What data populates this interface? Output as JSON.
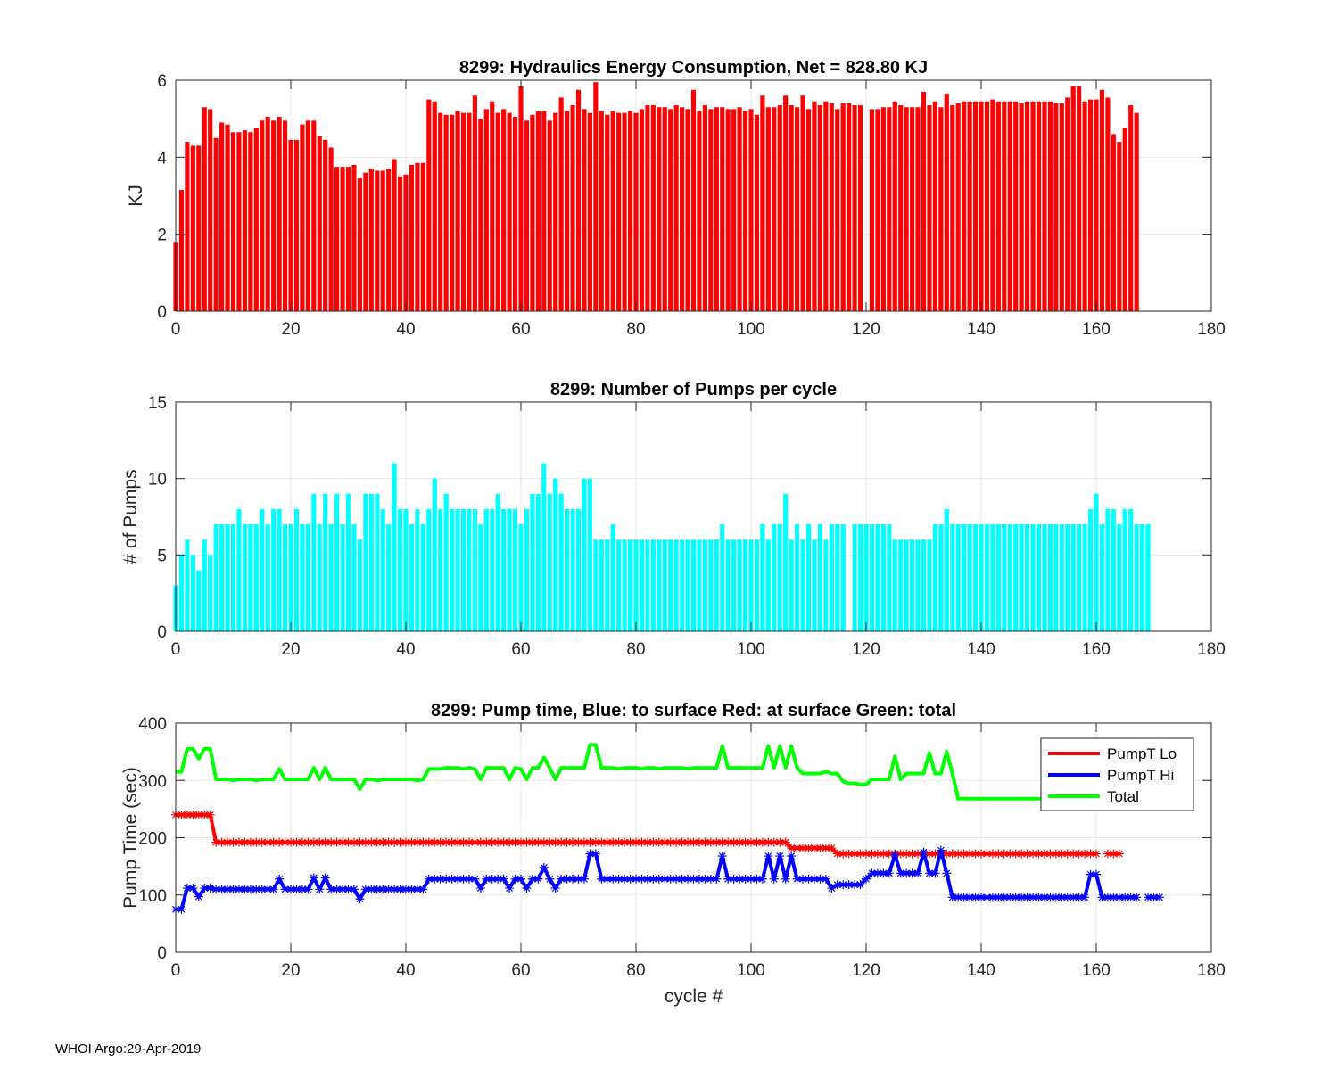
{
  "footer": "WHOI Argo:29-Apr-2019",
  "colors": {
    "energy": "#ff0000",
    "pumps": "#00ffff",
    "lo": "#ff0000",
    "hi": "#0000ff",
    "total": "#00ff00",
    "grid": "#e6e6e6",
    "axis": "#262626"
  },
  "chart_data": [
    {
      "id": "energy",
      "type": "bar",
      "title": "8299: Hydraulics Energy Consumption,  Net = 828.80 KJ",
      "xlabel": "",
      "ylabel": "KJ",
      "xlim": [
        0,
        180
      ],
      "ylim": [
        0,
        6
      ],
      "xticks": [
        0,
        20,
        40,
        60,
        80,
        100,
        120,
        140,
        160,
        180
      ],
      "yticks": [
        0,
        2,
        4,
        6
      ],
      "x_start": 0,
      "values": [
        1.8,
        3.15,
        4.4,
        4.3,
        4.3,
        5.3,
        5.25,
        4.5,
        4.9,
        4.85,
        4.65,
        4.65,
        4.7,
        4.65,
        4.75,
        4.95,
        5.05,
        4.95,
        5.05,
        4.95,
        4.45,
        4.45,
        4.85,
        4.95,
        4.95,
        4.55,
        4.45,
        4.25,
        3.75,
        3.75,
        3.75,
        3.8,
        3.45,
        3.6,
        3.7,
        3.65,
        3.65,
        3.7,
        3.95,
        3.5,
        3.55,
        3.8,
        3.85,
        3.85,
        5.5,
        5.45,
        5.15,
        5.1,
        5.1,
        5.2,
        5.15,
        5.15,
        5.6,
        5.0,
        5.25,
        5.45,
        5.15,
        5.25,
        5.15,
        5.05,
        5.85,
        4.95,
        5.1,
        5.2,
        5.2,
        4.95,
        5.15,
        5.55,
        5.2,
        5.35,
        5.75,
        5.25,
        5.15,
        5.95,
        5.2,
        5.1,
        5.2,
        5.15,
        5.15,
        5.2,
        5.15,
        5.25,
        5.35,
        5.35,
        5.3,
        5.3,
        5.25,
        5.35,
        5.3,
        5.25,
        5.75,
        5.2,
        5.35,
        5.25,
        5.3,
        5.3,
        5.25,
        5.25,
        5.3,
        5.2,
        5.25,
        5.1,
        5.6,
        5.3,
        5.3,
        5.35,
        5.6,
        5.35,
        5.3,
        5.6,
        5.25,
        5.45,
        5.35,
        5.45,
        5.4,
        5.25,
        5.4,
        5.4,
        5.35,
        5.35,
        null,
        5.25,
        5.25,
        5.3,
        5.3,
        5.45,
        5.35,
        5.3,
        5.3,
        5.3,
        5.7,
        5.35,
        5.45,
        5.3,
        5.65,
        5.35,
        5.4,
        5.45,
        5.45,
        5.45,
        5.45,
        5.45,
        5.5,
        5.45,
        5.45,
        5.45,
        5.45,
        5.4,
        5.45,
        5.45,
        5.45,
        5.45,
        5.45,
        5.4,
        5.4,
        5.55,
        5.85,
        5.85,
        5.45,
        5.5,
        5.5,
        5.75,
        5.55,
        4.6,
        4.4,
        4.75,
        5.35,
        5.15
      ]
    },
    {
      "id": "pumps",
      "type": "bar",
      "title": "8299: Number of Pumps per cycle",
      "xlabel": "",
      "ylabel": "# of Pumps",
      "xlim": [
        0,
        180
      ],
      "ylim": [
        0,
        15
      ],
      "xticks": [
        0,
        20,
        40,
        60,
        80,
        100,
        120,
        140,
        160,
        180
      ],
      "yticks": [
        0,
        5,
        10,
        15
      ],
      "x_start": 0,
      "values": [
        3,
        5,
        6,
        5,
        4,
        6,
        5,
        7,
        7,
        7,
        7,
        8,
        7,
        7,
        7,
        8,
        7,
        8,
        8,
        7,
        7,
        8,
        7,
        7,
        9,
        7,
        9,
        7,
        9,
        7,
        9,
        7,
        6,
        9,
        9,
        9,
        8,
        7,
        11,
        8,
        8,
        7,
        8,
        7,
        8,
        10,
        8,
        9,
        8,
        8,
        8,
        8,
        8,
        7,
        8,
        8,
        9,
        8,
        8,
        8,
        7,
        8,
        9,
        9,
        11,
        9,
        10,
        9,
        8,
        8,
        8,
        10,
        10,
        6,
        6,
        6,
        7,
        6,
        6,
        6,
        6,
        6,
        6,
        6,
        6,
        6,
        6,
        6,
        6,
        6,
        6,
        6,
        6,
        6,
        6,
        7,
        6,
        6,
        6,
        6,
        6,
        6,
        7,
        6,
        7,
        7,
        9,
        6,
        7,
        6,
        7,
        6,
        7,
        6,
        7,
        7,
        7,
        null,
        7,
        7,
        7,
        7,
        7,
        7,
        7,
        6,
        6,
        6,
        6,
        6,
        6,
        6,
        7,
        7,
        8,
        7,
        7,
        7,
        7,
        7,
        7,
        7,
        7,
        7,
        7,
        7,
        7,
        7,
        7,
        7,
        7,
        7,
        7,
        7,
        7,
        7,
        7,
        7,
        7,
        8,
        9,
        7,
        8,
        8,
        7,
        8,
        8,
        7,
        7,
        7
      ]
    },
    {
      "id": "pumptime",
      "type": "line",
      "title": "8299: Pump time,  Blue: to surface   Red: at surface  Green: total",
      "xlabel": "cycle #",
      "ylabel": "Pump Time (sec)",
      "xlim": [
        0,
        180
      ],
      "ylim": [
        0,
        400
      ],
      "xticks": [
        0,
        20,
        40,
        60,
        80,
        100,
        120,
        140,
        160,
        180
      ],
      "yticks": [
        0,
        100,
        200,
        300,
        400
      ],
      "legend": "top-right",
      "x_start": 0,
      "series": [
        {
          "name": "PumpT Lo",
          "color_key": "lo",
          "markers": true,
          "values": [
            240,
            240,
            240,
            240,
            240,
            240,
            240,
            192,
            192,
            192,
            192,
            192,
            192,
            192,
            192,
            192,
            192,
            192,
            192,
            192,
            192,
            192,
            192,
            192,
            192,
            192,
            192,
            192,
            192,
            192,
            192,
            192,
            192,
            192,
            192,
            192,
            192,
            192,
            192,
            192,
            192,
            192,
            192,
            192,
            192,
            192,
            192,
            192,
            192,
            192,
            192,
            192,
            192,
            192,
            192,
            192,
            192,
            192,
            192,
            192,
            192,
            192,
            192,
            192,
            192,
            192,
            192,
            192,
            192,
            192,
            192,
            192,
            192,
            192,
            192,
            192,
            192,
            192,
            192,
            192,
            192,
            192,
            192,
            192,
            192,
            192,
            192,
            192,
            192,
            192,
            192,
            192,
            192,
            192,
            192,
            192,
            192,
            192,
            192,
            192,
            192,
            192,
            192,
            192,
            192,
            192,
            192,
            182,
            182,
            182,
            182,
            182,
            182,
            182,
            182,
            172,
            172,
            172,
            172,
            172,
            172,
            172,
            172,
            172,
            172,
            172,
            172,
            172,
            172,
            172,
            172,
            172,
            172,
            172,
            172,
            172,
            172,
            172,
            172,
            172,
            172,
            172,
            172,
            172,
            172,
            172,
            172,
            172,
            172,
            172,
            172,
            172,
            172,
            172,
            172,
            172,
            172,
            172,
            172,
            172,
            172,
            null,
            172,
            172,
            172
          ]
        },
        {
          "name": "PumpT Hi",
          "color_key": "hi",
          "markers": true,
          "values": [
            75,
            75,
            112,
            112,
            97,
            112,
            112,
            110,
            110,
            110,
            110,
            110,
            110,
            110,
            110,
            110,
            110,
            110,
            128,
            110,
            110,
            110,
            110,
            110,
            130,
            110,
            130,
            110,
            110,
            110,
            110,
            110,
            93,
            110,
            110,
            110,
            110,
            110,
            110,
            110,
            110,
            110,
            110,
            110,
            128,
            128,
            128,
            128,
            128,
            128,
            128,
            128,
            128,
            112,
            128,
            128,
            128,
            128,
            112,
            128,
            128,
            112,
            128,
            128,
            148,
            128,
            112,
            128,
            128,
            128,
            128,
            128,
            172,
            172,
            128,
            128,
            128,
            128,
            128,
            128,
            128,
            128,
            128,
            128,
            128,
            128,
            128,
            128,
            128,
            128,
            128,
            128,
            128,
            128,
            128,
            168,
            128,
            128,
            128,
            128,
            128,
            128,
            128,
            168,
            128,
            168,
            128,
            168,
            128,
            128,
            128,
            128,
            128,
            128,
            112,
            118,
            118,
            118,
            118,
            118,
            128,
            138,
            138,
            138,
            138,
            170,
            138,
            138,
            138,
            138,
            175,
            138,
            138,
            178,
            138,
            96,
            96,
            96,
            96,
            96,
            96,
            96,
            96,
            96,
            96,
            96,
            96,
            96,
            96,
            96,
            96,
            96,
            96,
            96,
            96,
            96,
            96,
            96,
            96,
            136,
            136,
            96,
            96,
            96,
            96,
            96,
            96,
            96,
            null,
            96,
            96,
            96
          ]
        },
        {
          "name": "Total",
          "color_key": "total",
          "markers": false,
          "values": [
            315,
            315,
            355,
            355,
            338,
            355,
            355,
            302,
            302,
            302,
            300,
            302,
            302,
            302,
            300,
            302,
            302,
            302,
            320,
            302,
            302,
            302,
            302,
            302,
            322,
            302,
            322,
            302,
            302,
            302,
            302,
            302,
            285,
            302,
            302,
            300,
            302,
            302,
            302,
            302,
            302,
            302,
            300,
            302,
            320,
            320,
            320,
            322,
            322,
            322,
            320,
            322,
            320,
            302,
            322,
            322,
            322,
            322,
            302,
            322,
            320,
            302,
            322,
            322,
            340,
            322,
            302,
            322,
            322,
            322,
            322,
            322,
            362,
            362,
            322,
            322,
            322,
            320,
            322,
            322,
            322,
            320,
            322,
            322,
            320,
            322,
            322,
            322,
            322,
            320,
            322,
            322,
            322,
            322,
            322,
            360,
            322,
            322,
            322,
            322,
            322,
            322,
            322,
            360,
            322,
            360,
            322,
            360,
            322,
            312,
            312,
            312,
            312,
            315,
            312,
            312,
            298,
            295,
            295,
            293,
            293,
            302,
            302,
            302,
            302,
            342,
            302,
            312,
            312,
            312,
            312,
            348,
            312,
            312,
            350,
            312,
            268,
            268,
            268,
            268,
            268,
            268,
            268,
            268,
            268,
            268,
            268,
            268,
            268,
            268,
            268,
            268,
            268,
            268,
            268,
            268,
            268,
            268,
            268,
            268,
            null,
            null,
            null,
            null,
            null,
            null,
            null,
            null,
            null,
            null,
            null,
            null
          ]
        }
      ]
    }
  ]
}
